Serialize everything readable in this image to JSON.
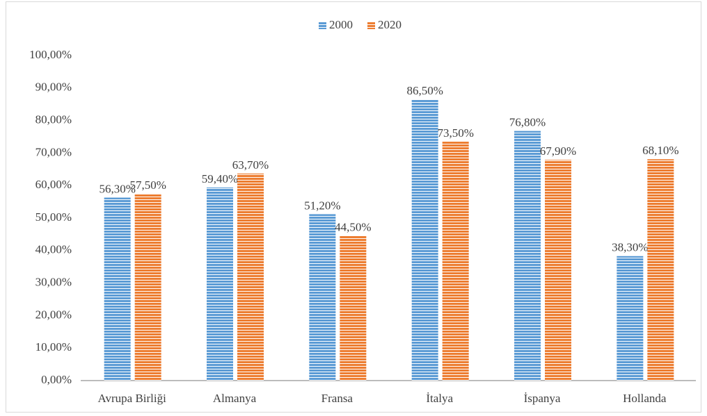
{
  "chart_data": {
    "type": "bar",
    "categories": [
      "Avrupa Birliği",
      "Almanya",
      "Fransa",
      "İtalya",
      "İspanya",
      "Hollanda"
    ],
    "series": [
      {
        "name": "2000",
        "color": "#5b9bd5",
        "values": [
          56.3,
          59.4,
          51.2,
          86.5,
          76.8,
          38.3
        ],
        "value_labels": [
          "56,30%",
          "59,40%",
          "51,20%",
          "86,50%",
          "76,80%",
          "38,30%"
        ]
      },
      {
        "name": "2020",
        "color": "#ed7d31",
        "values": [
          57.5,
          63.7,
          44.5,
          73.5,
          67.9,
          68.1
        ],
        "value_labels": [
          "57,50%",
          "63,70%",
          "44,50%",
          "73,50%",
          "67,90%",
          "68,10%"
        ]
      }
    ],
    "ylim": [
      0,
      100
    ],
    "yticks": [
      {
        "value": 0,
        "label": "0,00%"
      },
      {
        "value": 10,
        "label": "10,00%"
      },
      {
        "value": 20,
        "label": "20,00%"
      },
      {
        "value": 30,
        "label": "30,00%"
      },
      {
        "value": 40,
        "label": "40,00%"
      },
      {
        "value": 50,
        "label": "50,00%"
      },
      {
        "value": 60,
        "label": "60,00%"
      },
      {
        "value": 70,
        "label": "70,00%"
      },
      {
        "value": 80,
        "label": "80,00%"
      },
      {
        "value": 90,
        "label": "90,00%"
      },
      {
        "value": 100,
        "label": "100,00%"
      }
    ],
    "grid": false,
    "legend": "top"
  }
}
